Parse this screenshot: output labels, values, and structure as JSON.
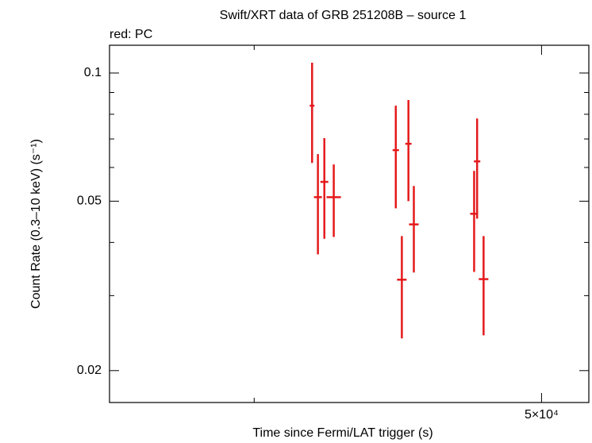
{
  "chart_data": {
    "type": "scatter",
    "title": "Swift/XRT data of GRB 251208B – source 1",
    "subtitle": "red: PC",
    "x_label": "Time since Fermi/LAT trigger (s)",
    "y_label": "Count Rate (0.3–10 keV) (s⁻¹)",
    "log_x": true,
    "log_y": true,
    "xlim": [
      35750,
      51870
    ],
    "ylim": [
      0.01683,
      0.1162
    ],
    "xticks": [
      {
        "value": 50000,
        "label": "5×10⁴"
      }
    ],
    "xminorticks": [
      40000
    ],
    "yticks": [
      0.02,
      0.05,
      0.1
    ],
    "yminorticks": [
      0.03,
      0.04,
      0.06,
      0.07,
      0.08,
      0.09
    ],
    "series": [
      {
        "name": "PC",
        "color": "#e41a1c",
        "x": [
          41840,
          42030,
          42240,
          42550,
          44650,
          45090,
          44860,
          45280,
          47450,
          47560,
          47800
        ],
        "xerr": [
          77,
          130,
          130,
          237,
          110,
          110,
          166,
          168,
          146,
          117,
          177
        ],
        "values": [
          0.0838,
          0.0511,
          0.0555,
          0.0511,
          0.0659,
          0.0682,
          0.0327,
          0.0441,
          0.0467,
          0.062,
          0.0328
        ],
        "ylow": [
          0.0615,
          0.0375,
          0.0408,
          0.0412,
          0.0481,
          0.05,
          0.0238,
          0.034,
          0.0341,
          0.0455,
          0.0242
        ],
        "yhigh": [
          0.1057,
          0.0645,
          0.0703,
          0.061,
          0.0838,
          0.0864,
          0.0414,
          0.0543,
          0.0589,
          0.0782,
          0.0414
        ]
      }
    ]
  }
}
